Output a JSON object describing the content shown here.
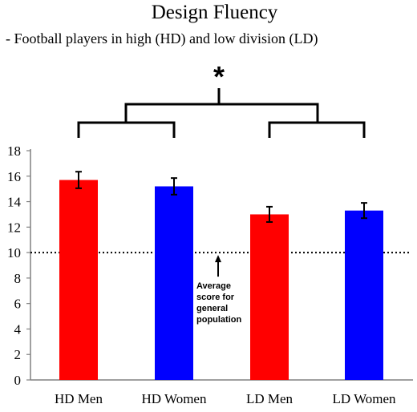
{
  "chart_data": {
    "type": "bar",
    "title": "Design Fluency",
    "subtitle": "- Football players in high (HD) and low division (LD)",
    "categories": [
      "HD Men",
      "HD Women",
      "LD Men",
      "LD Women"
    ],
    "values": [
      15.7,
      15.2,
      13.0,
      13.3
    ],
    "errors": [
      0.65,
      0.65,
      0.6,
      0.6
    ],
    "bar_colors": [
      "#ff0000",
      "#0000ff",
      "#ff0000",
      "#0000ff"
    ],
    "ylim": [
      0,
      18
    ],
    "yticks": [
      0,
      2,
      4,
      6,
      8,
      10,
      12,
      14,
      16,
      18
    ],
    "xlabel": "",
    "ylabel": "",
    "grid": false,
    "reference_line": {
      "value": 10,
      "style": "dotted"
    },
    "annotations": {
      "reference_label": [
        "Average",
        "score for",
        "general",
        "population"
      ],
      "significance": "*"
    }
  }
}
